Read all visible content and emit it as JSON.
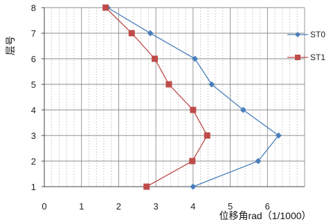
{
  "chart_data": {
    "type": "line",
    "title": "",
    "xlabel": "位移角rad（1/1000）",
    "ylabel": "层号",
    "xlim": [
      0,
      7
    ],
    "ylim": [
      1,
      8
    ],
    "x_ticks": [
      "0",
      "1",
      "2",
      "3",
      "4",
      "5",
      "6"
    ],
    "y_ticks": [
      "1",
      "2",
      "3",
      "4",
      "5",
      "6",
      "7",
      "8"
    ],
    "grid": true,
    "legend": "right",
    "series": [
      {
        "name": "ST0",
        "color": "#4a7ebb",
        "marker": "diamond",
        "points": [
          {
            "x": 4.0,
            "y": 1
          },
          {
            "x": 5.75,
            "y": 2
          },
          {
            "x": 6.3,
            "y": 3
          },
          {
            "x": 5.35,
            "y": 4
          },
          {
            "x": 4.5,
            "y": 5
          },
          {
            "x": 4.05,
            "y": 6
          },
          {
            "x": 2.85,
            "y": 7
          },
          {
            "x": 1.7,
            "y": 8
          }
        ]
      },
      {
        "name": "ST1",
        "color": "#be4b48",
        "marker": "square",
        "points": [
          {
            "x": 2.75,
            "y": 1
          },
          {
            "x": 3.98,
            "y": 2
          },
          {
            "x": 4.38,
            "y": 3
          },
          {
            "x": 4.0,
            "y": 4
          },
          {
            "x": 3.35,
            "y": 5
          },
          {
            "x": 2.97,
            "y": 6
          },
          {
            "x": 2.35,
            "y": 7
          },
          {
            "x": 1.65,
            "y": 8
          }
        ]
      }
    ]
  }
}
